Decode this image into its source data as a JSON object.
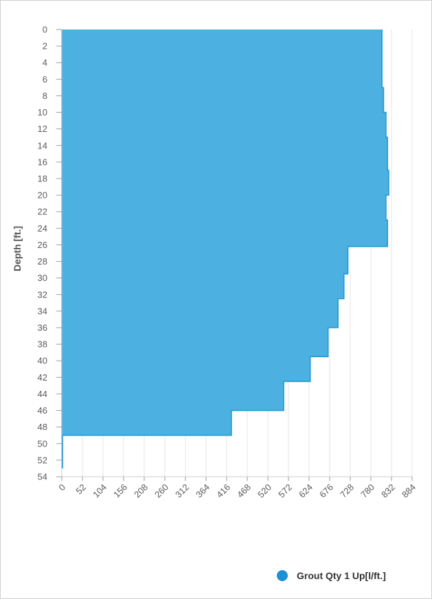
{
  "chart_data": {
    "type": "area",
    "orientation": "horizontal",
    "xlim": [
      0,
      884
    ],
    "x_ticks": [
      0,
      52,
      104,
      156,
      208,
      260,
      312,
      364,
      416,
      468,
      520,
      572,
      624,
      676,
      728,
      780,
      832,
      884
    ],
    "ylim": [
      0,
      54
    ],
    "y_ticks": [
      0,
      2,
      4,
      6,
      8,
      10,
      12,
      14,
      16,
      18,
      20,
      22,
      24,
      26,
      28,
      30,
      32,
      34,
      36,
      38,
      40,
      42,
      44,
      46,
      48,
      50,
      52,
      54
    ],
    "ylabel": "Depth [ft.]",
    "xlabel": "",
    "y_inverted": true,
    "grid": "vertical",
    "legend_position": "bottom-right",
    "colors": {
      "fill": "#4cb0e0",
      "stroke": "#1e9ad6",
      "legend_marker": "#1e90d6"
    },
    "series": [
      {
        "name": "Grout Qty 1 Up[l/ft.]",
        "depth": [
          0,
          7,
          7,
          10,
          10,
          13,
          13,
          17,
          17,
          20,
          20,
          23,
          23,
          26.2,
          26.2,
          29.5,
          29.5,
          32.5,
          32.5,
          36,
          36,
          39.5,
          39.5,
          42.5,
          42.5,
          46,
          46,
          49,
          49,
          53
        ],
        "values": [
          808,
          808,
          812,
          812,
          818,
          818,
          822,
          822,
          825,
          825,
          818,
          818,
          822,
          822,
          722,
          722,
          712,
          712,
          697,
          697,
          672,
          672,
          627,
          627,
          560,
          560,
          428,
          428,
          2,
          2
        ]
      }
    ]
  }
}
